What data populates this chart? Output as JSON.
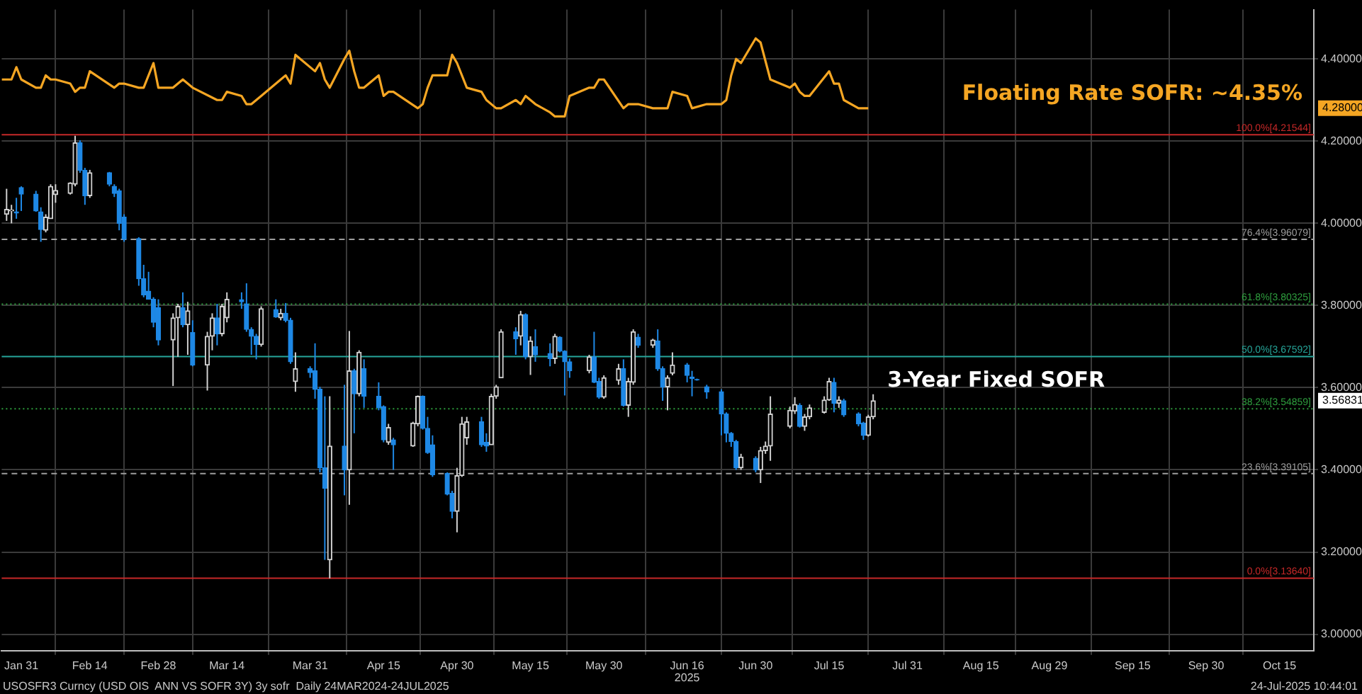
{
  "chart_data": {
    "type": "candlestick",
    "xlim": [
      "2025-01-27",
      "2025-10-22"
    ],
    "xticks": [
      {
        "value": "2025-01-31",
        "label": "Jan 31"
      },
      {
        "value": "2025-02-14",
        "label": "Feb 14"
      },
      {
        "value": "2025-02-28",
        "label": "Feb 28"
      },
      {
        "value": "2025-03-14",
        "label": "Mar 14"
      },
      {
        "value": "2025-03-31",
        "label": "Mar 31"
      },
      {
        "value": "2025-04-15",
        "label": "Apr 15"
      },
      {
        "value": "2025-04-30",
        "label": "Apr 30"
      },
      {
        "value": "2025-05-15",
        "label": "May 15"
      },
      {
        "value": "2025-05-30",
        "label": "May 30"
      },
      {
        "value": "2025-06-16",
        "label": "Jun 16"
      },
      {
        "value": "2025-06-30",
        "label": "Jun 30"
      },
      {
        "value": "2025-07-15",
        "label": "Jul 15"
      },
      {
        "value": "2025-07-31",
        "label": "Jul 31"
      },
      {
        "value": "2025-08-15",
        "label": "Aug 15"
      },
      {
        "value": "2025-08-29",
        "label": "Aug 29"
      },
      {
        "value": "2025-09-15",
        "label": "Sep 15"
      },
      {
        "value": "2025-09-30",
        "label": "Sep 30"
      },
      {
        "value": "2025-10-15",
        "label": "Oct 15"
      }
    ],
    "ylim": [
      2.96,
      4.52
    ],
    "yticks": [
      {
        "value": 3,
        "label": "3.00000"
      },
      {
        "value": 3.2,
        "label": "3.20000"
      },
      {
        "value": 3.4,
        "label": "3.40000"
      },
      {
        "value": 3.6,
        "label": "3.60000"
      },
      {
        "value": 3.8,
        "label": "3.80000"
      },
      {
        "value": 4,
        "label": "4.00000"
      },
      {
        "value": 4.2,
        "label": "4.20000"
      },
      {
        "value": 4.4,
        "label": "4.40000"
      }
    ],
    "grid": true,
    "series": [
      {
        "name": "3-Year Fixed SOFR",
        "colors": [
          "#d0d0d0",
          "#d0d0d0",
          "#1e88e5",
          "#1e88e5",
          "#1e88e5",
          "#1e88e5",
          "#d0d0d0",
          "#d0d0d0",
          "#d0d0d0",
          "#d0d0d0",
          "#d0d0d0",
          "#1e88e5",
          "#1e88e5",
          "#d0d0d0",
          "#1e88e5",
          "#1e88e5",
          "#1e88e5",
          "#1e88e5",
          "#1e88e5",
          "#1e88e5",
          "#1e88e5",
          "#1e88e5",
          "#1e88e5",
          "#d0d0d0",
          "#d0d0d0",
          "#1e88e5",
          "#d0d0d0",
          "#1e88e5",
          "#d0d0d0",
          "#d0d0d0",
          "#1e88e5",
          "#d0d0d0",
          "#d0d0d0",
          "#1e88e5",
          "#1e88e5",
          "#1e88e5",
          "#1e88e5",
          "#d0d0d0",
          "#1e88e5",
          "#d0d0d0",
          "#1e88e5",
          "#1e88e5",
          "#d0d0d0",
          "#1e88e5",
          "#1e88e5",
          "#1e88e5",
          "#1e88e5",
          "#d0d0d0",
          "#1e88e5",
          "#d0d0d0",
          "#1e88e5",
          "#d0d0d0",
          "#1e88e5",
          "#1e88e5",
          "#1e88e5",
          "#d0d0d0",
          "#1e88e5",
          "#d0d0d0",
          "#d0d0d0",
          "#1e88e5",
          "#1e88e5",
          "#1e88e5",
          "#1e88e5",
          "#1e88e5",
          "#d0d0d0",
          "#d0d0d0",
          "#d0d0d0",
          "#1e88e5",
          "#1e88e5",
          "#d0d0d0",
          "#d0d0d0",
          "#d0d0d0",
          "#1e88e5",
          "#d0d0d0",
          "#1e88e5",
          "#d0d0d0",
          "#1e88e5",
          "#1e88e5",
          "#d0d0d0",
          "#1e88e5",
          "#1e88e5",
          "#1e88e5",
          "#d0d0d0",
          "#1e88e5",
          "#1e88e5",
          "#d0d0d0",
          "#d0d0d0",
          "#1e88e5",
          "#d0d0d0",
          "#d0d0d0",
          "#1e88e5",
          "#d0d0d0",
          "#1e88e5",
          "#1e88e5",
          "#d0d0d0",
          "#d0d0d0",
          "#1e88e5",
          "#1e88e5",
          "#1e88e5",
          "#1e88e5",
          "#1e88e5",
          "#1e88e5",
          "#1e88e5",
          "#1e88e5",
          "#d0d0d0",
          "#1e88e5",
          "#d0d0d0",
          "#d0d0d0",
          "#d0d0d0",
          "#d0d0d0",
          "#d0d0d0",
          "#1e88e5",
          "#d0d0d0",
          "#d0d0d0",
          "#d0d0d0",
          "#d0d0d0",
          "#1e88e5",
          "#d0d0d0",
          "#1e88e5",
          "#1e88e5",
          "#1e88e5",
          "#d0d0d0",
          "#d0d0d0"
        ],
        "x": [
          "2025-01-28",
          "2025-01-29",
          "2025-01-30",
          "2025-01-31",
          "2025-02-03",
          "2025-02-04",
          "2025-02-05",
          "2025-02-06",
          "2025-02-07",
          "2025-02-10",
          "2025-02-11",
          "2025-02-12",
          "2025-02-13",
          "2025-02-14",
          "2025-02-18",
          "2025-02-19",
          "2025-02-20",
          "2025-02-21",
          "2025-02-24",
          "2025-02-25",
          "2025-02-26",
          "2025-02-27",
          "2025-02-28",
          "2025-03-03",
          "2025-03-04",
          "2025-03-05",
          "2025-03-06",
          "2025-03-07",
          "2025-03-10",
          "2025-03-11",
          "2025-03-12",
          "2025-03-13",
          "2025-03-14",
          "2025-03-17",
          "2025-03-18",
          "2025-03-19",
          "2025-03-20",
          "2025-03-21",
          "2025-03-24",
          "2025-03-25",
          "2025-03-26",
          "2025-03-27",
          "2025-03-28",
          "2025-03-31",
          "2025-04-01",
          "2025-04-02",
          "2025-04-03",
          "2025-04-04",
          "2025-04-07",
          "2025-04-08",
          "2025-04-09",
          "2025-04-10",
          "2025-04-11",
          "2025-04-14",
          "2025-04-15",
          "2025-04-16",
          "2025-04-17",
          "2025-04-21",
          "2025-04-22",
          "2025-04-23",
          "2025-04-24",
          "2025-04-25",
          "2025-04-28",
          "2025-04-29",
          "2025-04-30",
          "2025-05-01",
          "2025-05-02",
          "2025-05-05",
          "2025-05-06",
          "2025-05-07",
          "2025-05-08",
          "2025-05-09",
          "2025-05-12",
          "2025-05-13",
          "2025-05-14",
          "2025-05-15",
          "2025-05-16",
          "2025-05-19",
          "2025-05-20",
          "2025-05-21",
          "2025-05-22",
          "2025-05-23",
          "2025-05-27",
          "2025-05-28",
          "2025-05-29",
          "2025-05-30",
          "2025-06-02",
          "2025-06-03",
          "2025-06-04",
          "2025-06-05",
          "2025-06-06",
          "2025-06-09",
          "2025-06-10",
          "2025-06-11",
          "2025-06-12",
          "2025-06-13",
          "2025-06-16",
          "2025-06-17",
          "2025-06-18",
          "2025-06-20",
          "2025-06-23",
          "2025-06-24",
          "2025-06-25",
          "2025-06-26",
          "2025-06-27",
          "2025-06-30",
          "2025-07-01",
          "2025-07-02",
          "2025-07-03",
          "2025-07-07",
          "2025-07-08",
          "2025-07-09",
          "2025-07-10",
          "2025-07-11",
          "2025-07-14",
          "2025-07-15",
          "2025-07-16",
          "2025-07-17",
          "2025-07-18",
          "2025-07-21",
          "2025-07-22",
          "2025-07-23",
          "2025-07-24"
        ],
        "ohlc": [
          [
            4.022,
            4.084,
            4.006,
            4.034
          ],
          [
            4.03,
            4.045,
            4.0,
            4.032
          ],
          [
            4.028,
            4.062,
            4.011,
            4.025
          ],
          [
            4.087,
            4.09,
            4.03,
            4.071
          ],
          [
            4.071,
            4.079,
            4.028,
            4.03
          ],
          [
            4.028,
            4.039,
            3.955,
            3.985
          ],
          [
            3.983,
            4.022,
            3.978,
            4.015
          ],
          [
            4.011,
            4.095,
            4.011,
            4.09
          ],
          [
            4.07,
            4.095,
            4.05,
            4.08
          ],
          [
            4.073,
            4.1,
            4.07,
            4.098
          ],
          [
            4.095,
            4.213,
            4.09,
            4.196
          ],
          [
            4.196,
            4.202,
            4.123,
            4.129
          ],
          [
            4.129,
            4.135,
            4.045,
            4.067
          ],
          [
            4.067,
            4.13,
            4.062,
            4.123
          ],
          [
            4.123,
            4.125,
            4.09,
            4.095
          ],
          [
            4.09,
            4.095,
            4.064,
            4.073
          ],
          [
            4.079,
            4.084,
            3.983,
            4.0
          ],
          [
            4.015,
            4.022,
            3.955,
            3.961
          ],
          [
            3.963,
            3.966,
            3.848,
            3.865
          ],
          [
            3.865,
            3.899,
            3.82,
            3.826
          ],
          [
            3.835,
            3.882,
            3.815,
            3.815
          ],
          [
            3.815,
            3.82,
            3.747,
            3.759
          ],
          [
            3.795,
            3.815,
            3.703,
            3.716
          ],
          [
            3.716,
            3.781,
            3.604,
            3.77
          ],
          [
            3.77,
            3.804,
            3.675,
            3.798
          ],
          [
            3.795,
            3.832,
            3.747,
            3.753
          ],
          [
            3.753,
            3.809,
            3.68,
            3.787
          ],
          [
            3.734,
            3.764,
            3.652,
            3.655
          ],
          [
            3.655,
            3.736,
            3.593,
            3.725
          ],
          [
            3.725,
            3.781,
            3.691,
            3.77
          ],
          [
            3.77,
            3.804,
            3.703,
            3.731
          ],
          [
            3.731,
            3.804,
            3.725,
            3.798
          ],
          [
            3.77,
            3.832,
            3.759,
            3.815
          ],
          [
            3.814,
            3.832,
            3.792,
            3.809
          ],
          [
            3.804,
            3.854,
            3.736,
            3.742
          ],
          [
            3.742,
            3.747,
            3.68,
            3.725
          ],
          [
            3.725,
            3.731,
            3.669,
            3.705
          ],
          [
            3.705,
            3.798,
            3.7,
            3.792
          ],
          [
            3.79,
            3.815,
            3.77,
            3.772
          ],
          [
            3.77,
            3.792,
            3.764,
            3.781
          ],
          [
            3.781,
            3.806,
            3.759,
            3.764
          ],
          [
            3.764,
            3.77,
            3.658,
            3.663
          ],
          [
            3.615,
            3.686,
            3.59,
            3.646
          ],
          [
            3.646,
            3.652,
            3.624,
            3.637
          ],
          [
            3.641,
            3.708,
            3.573,
            3.596
          ],
          [
            3.596,
            3.602,
            3.394,
            3.405
          ],
          [
            3.405,
            3.579,
            3.181,
            3.355
          ],
          [
            3.181,
            3.579,
            3.136,
            3.458
          ],
          [
            3.458,
            3.607,
            3.338,
            3.4
          ],
          [
            3.4,
            3.738,
            3.315,
            3.641
          ],
          [
            3.641,
            3.646,
            3.489,
            3.585
          ],
          [
            3.585,
            3.691,
            3.579,
            3.686
          ],
          [
            3.646,
            3.669,
            3.551,
            3.579
          ],
          [
            3.579,
            3.613,
            3.545,
            3.551
          ],
          [
            3.554,
            3.557,
            3.467,
            3.473
          ],
          [
            3.467,
            3.512,
            3.461,
            3.503
          ],
          [
            3.473,
            3.478,
            3.4,
            3.461
          ],
          [
            3.458,
            3.517,
            3.456,
            3.514
          ],
          [
            3.512,
            3.581,
            3.506,
            3.579
          ],
          [
            3.579,
            3.581,
            3.498,
            3.501
          ],
          [
            3.501,
            3.529,
            3.439,
            3.442
          ],
          [
            3.461,
            3.484,
            3.383,
            3.388
          ],
          [
            3.391,
            3.394,
            3.338,
            3.341
          ],
          [
            3.343,
            3.349,
            3.282,
            3.299
          ],
          [
            3.299,
            3.405,
            3.248,
            3.386
          ],
          [
            3.386,
            3.529,
            3.383,
            3.512
          ],
          [
            3.478,
            3.529,
            3.461,
            3.517
          ],
          [
            3.517,
            3.529,
            3.456,
            3.461
          ],
          [
            3.467,
            3.489,
            3.444,
            3.458
          ],
          [
            3.461,
            3.585,
            3.461,
            3.579
          ],
          [
            3.579,
            3.607,
            3.573,
            3.602
          ],
          [
            3.624,
            3.742,
            3.624,
            3.736
          ],
          [
            3.736,
            3.747,
            3.68,
            3.719
          ],
          [
            3.725,
            3.787,
            3.703,
            3.778
          ],
          [
            3.778,
            3.781,
            3.669,
            3.675
          ],
          [
            3.675,
            3.725,
            3.631,
            3.714
          ],
          [
            3.7,
            3.742,
            3.663,
            3.68
          ],
          [
            3.683,
            3.708,
            3.652,
            3.671
          ],
          [
            3.671,
            3.731,
            3.658,
            3.725
          ],
          [
            3.723,
            3.725,
            3.686,
            3.689
          ],
          [
            3.689,
            3.691,
            3.581,
            3.663
          ],
          [
            3.663,
            3.671,
            3.624,
            3.641
          ],
          [
            3.641,
            3.68,
            3.635,
            3.675
          ],
          [
            3.675,
            3.736,
            3.611,
            3.613
          ],
          [
            3.615,
            3.624,
            3.573,
            3.577
          ],
          [
            3.577,
            3.63,
            3.573,
            3.624
          ],
          [
            3.618,
            3.658,
            3.607,
            3.646
          ],
          [
            3.646,
            3.669,
            3.554,
            3.557
          ],
          [
            3.557,
            3.624,
            3.529,
            3.615
          ],
          [
            3.613,
            3.742,
            3.607,
            3.736
          ],
          [
            3.723,
            3.731,
            3.697,
            3.703
          ],
          [
            3.703,
            3.719,
            3.697,
            3.716
          ],
          [
            3.714,
            3.742,
            3.641,
            3.646
          ],
          [
            3.646,
            3.652,
            3.568,
            3.602
          ],
          [
            3.602,
            3.63,
            3.545,
            3.624
          ],
          [
            3.635,
            3.686,
            3.63,
            3.655
          ],
          [
            3.655,
            3.66,
            3.613,
            3.63
          ],
          [
            3.626,
            3.641,
            3.579,
            3.622
          ],
          [
            3.62,
            3.622,
            3.617,
            3.619
          ],
          [
            3.602,
            3.607,
            3.573,
            3.59
          ],
          [
            3.59,
            3.596,
            3.484,
            3.536
          ],
          [
            3.536,
            3.54,
            3.467,
            3.489
          ],
          [
            3.489,
            3.492,
            3.456,
            3.469
          ],
          [
            3.469,
            3.473,
            3.4,
            3.405
          ],
          [
            3.405,
            3.439,
            3.4,
            3.431
          ],
          [
            3.428,
            3.433,
            3.394,
            3.4
          ],
          [
            3.4,
            3.456,
            3.368,
            3.447
          ],
          [
            3.447,
            3.469,
            3.439,
            3.458
          ],
          [
            3.458,
            3.579,
            3.422,
            3.536
          ],
          [
            3.506,
            3.554,
            3.501,
            3.545
          ],
          [
            3.543,
            3.577,
            3.536,
            3.559
          ],
          [
            3.557,
            3.562,
            3.503,
            3.506
          ],
          [
            3.506,
            3.536,
            3.495,
            3.529
          ],
          [
            3.529,
            3.559,
            3.523,
            3.551
          ],
          [
            3.54,
            3.579,
            3.537,
            3.57
          ],
          [
            3.57,
            3.624,
            3.568,
            3.615
          ],
          [
            3.613,
            3.624,
            3.54,
            3.562
          ],
          [
            3.562,
            3.579,
            3.551,
            3.57
          ],
          [
            3.568,
            3.573,
            3.529,
            3.534
          ],
          [
            3.536,
            3.54,
            3.506,
            3.512
          ],
          [
            3.514,
            3.517,
            3.473,
            3.484
          ],
          [
            3.484,
            3.534,
            3.481,
            3.529
          ],
          [
            3.529,
            3.584,
            3.523,
            3.56831
          ]
        ]
      },
      {
        "type": "line",
        "name": "Floating Rate SOFR: ~4.35%",
        "color": "#f5a623",
        "x": [
          "2025-01-27",
          "2025-01-29",
          "2025-01-30",
          "2025-01-31",
          "2025-02-03",
          "2025-02-04",
          "2025-02-05",
          "2025-02-06",
          "2025-02-07",
          "2025-02-10",
          "2025-02-11",
          "2025-02-12",
          "2025-02-13",
          "2025-02-14",
          "2025-02-19",
          "2025-02-20",
          "2025-02-21",
          "2025-02-24",
          "2025-02-25",
          "2025-02-27",
          "2025-02-28",
          "2025-03-03",
          "2025-03-05",
          "2025-03-07",
          "2025-03-12",
          "2025-03-13",
          "2025-03-14",
          "2025-03-17",
          "2025-03-18",
          "2025-03-19",
          "2025-03-21",
          "2025-03-25",
          "2025-03-26",
          "2025-03-27",
          "2025-03-28",
          "2025-04-01",
          "2025-04-02",
          "2025-04-03",
          "2025-04-04",
          "2025-04-07",
          "2025-04-08",
          "2025-04-09",
          "2025-04-10",
          "2025-04-11",
          "2025-04-14",
          "2025-04-15",
          "2025-04-16",
          "2025-04-17",
          "2025-04-22",
          "2025-04-23",
          "2025-04-24",
          "2025-04-25",
          "2025-04-28",
          "2025-04-29",
          "2025-04-30",
          "2025-05-02",
          "2025-05-05",
          "2025-05-06",
          "2025-05-08",
          "2025-05-09",
          "2025-05-12",
          "2025-05-13",
          "2025-05-14",
          "2025-05-16",
          "2025-05-19",
          "2025-05-20",
          "2025-05-22",
          "2025-05-23",
          "2025-05-27",
          "2025-05-28",
          "2025-05-29",
          "2025-05-30",
          "2025-06-03",
          "2025-06-04",
          "2025-06-06",
          "2025-06-09",
          "2025-06-12",
          "2025-06-13",
          "2025-06-16",
          "2025-06-17",
          "2025-06-20",
          "2025-06-23",
          "2025-06-24",
          "2025-06-25",
          "2025-06-26",
          "2025-06-27",
          "2025-06-30",
          "2025-07-01",
          "2025-07-03",
          "2025-07-07",
          "2025-07-08",
          "2025-07-09",
          "2025-07-10",
          "2025-07-11",
          "2025-07-15",
          "2025-07-16",
          "2025-07-17",
          "2025-07-18",
          "2025-07-21",
          "2025-07-23"
        ],
        "values": [
          4.35,
          4.35,
          4.38,
          4.35,
          4.33,
          4.33,
          4.36,
          4.35,
          4.35,
          4.34,
          4.32,
          4.33,
          4.33,
          4.37,
          4.33,
          4.34,
          4.34,
          4.33,
          4.33,
          4.39,
          4.33,
          4.33,
          4.35,
          4.33,
          4.3,
          4.3,
          4.32,
          4.31,
          4.29,
          4.29,
          4.31,
          4.35,
          4.36,
          4.34,
          4.41,
          4.37,
          4.39,
          4.35,
          4.33,
          4.4,
          4.42,
          4.37,
          4.33,
          4.33,
          4.36,
          4.31,
          4.32,
          4.32,
          4.28,
          4.29,
          4.33,
          4.36,
          4.36,
          4.41,
          4.39,
          4.33,
          4.32,
          4.3,
          4.28,
          4.28,
          4.3,
          4.29,
          4.31,
          4.29,
          4.27,
          4.26,
          4.26,
          4.31,
          4.33,
          4.33,
          4.35,
          4.35,
          4.28,
          4.29,
          4.29,
          4.28,
          4.28,
          4.32,
          4.31,
          4.28,
          4.29,
          4.29,
          4.3,
          4.36,
          4.4,
          4.39,
          4.45,
          4.44,
          4.35,
          4.33,
          4.34,
          4.32,
          4.31,
          4.31,
          4.37,
          4.34,
          4.34,
          4.3,
          4.28,
          4.28
        ]
      }
    ],
    "ref_lines": [
      {
        "axis": "y",
        "value": 4.21544,
        "label": "100.0%[4.21544]",
        "color": "#c62828",
        "line_style": "solid"
      },
      {
        "axis": "y",
        "value": 3.96079,
        "label": "76.4%[3.96079]",
        "color": "#9e9e9e",
        "line_style": "dashed"
      },
      {
        "axis": "y",
        "value": 3.80325,
        "label": "61.8%[3.80325]",
        "color": "#2e9e3e",
        "line_style": "dotted"
      },
      {
        "axis": "y",
        "value": 3.67592,
        "label": "50.0%[3.67592]",
        "color": "#26a69a",
        "line_style": "solid"
      },
      {
        "axis": "y",
        "value": 3.54859,
        "label": "38.2%[3.54859]",
        "color": "#2e9e3e",
        "line_style": "dotted"
      },
      {
        "axis": "y",
        "value": 3.39105,
        "label": "23.6%[3.39105]",
        "color": "#9e9e9e",
        "line_style": "dashed"
      },
      {
        "axis": "y",
        "value": 3.1364,
        "label": "0.0%[3.13640]",
        "color": "#c62828",
        "line_style": "solid"
      }
    ],
    "annotations": [
      "USOSFR3 Curncy (USD OIS  ANN VS SOFR 3Y) 3y sofr  Daily 24MAR2024-24JUL2025",
      "2025",
      "24-Jul-2025 10:44:01",
      "4.28000",
      "3.56831"
    ]
  }
}
